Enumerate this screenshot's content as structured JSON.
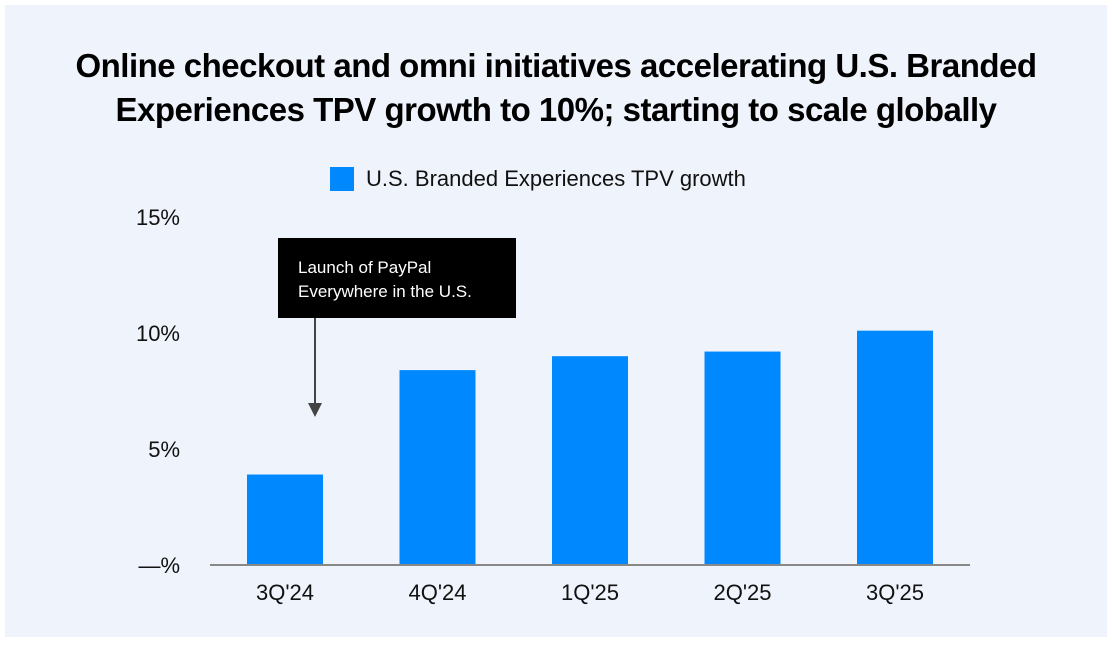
{
  "title_line1": "Online checkout and omni initiatives accelerating U.S. Branded",
  "title_line2": "Experiences TPV growth to 10%; starting to scale globally",
  "chart_data": {
    "type": "bar",
    "title": "Online checkout and omni initiatives accelerating U.S. Branded Experiences TPV growth to 10%; starting to scale globally",
    "categories": [
      "3Q'24",
      "4Q'24",
      "1Q'25",
      "2Q'25",
      "3Q'25"
    ],
    "series": [
      {
        "name": "U.S. Branded Experiences TPV growth",
        "values": [
          3.9,
          8.4,
          9.0,
          9.2,
          10.1
        ],
        "color": "#0088ff"
      }
    ],
    "ylim": [
      0,
      15
    ],
    "yticks": [
      0,
      5,
      10,
      15
    ],
    "ytick_labels": [
      "—%",
      "5%",
      "10%",
      "15%"
    ],
    "xlabel": "",
    "ylabel": "",
    "grid": false,
    "legend_position": "top-center",
    "annotation": {
      "line1": "Launch of PayPal",
      "line2": "Everywhere in the U.S.",
      "target": "3Q'24"
    }
  }
}
